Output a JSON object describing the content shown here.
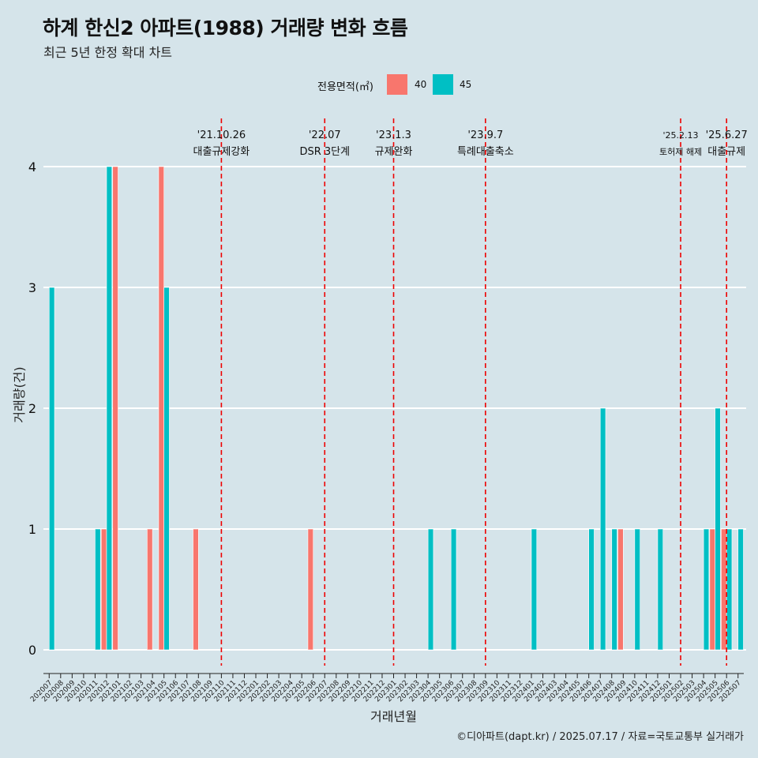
{
  "title": "하계 한신2 아파트(1988) 거래량 변화 흐름",
  "subtitle": "최근 5년 한정 확대 차트",
  "caption": "©디아파트(dapt.kr) / 2025.07.17 / 자료=국토교통부 실거래가",
  "colors": {
    "background": "#d5e4ea",
    "s40": "#f8766d",
    "s45": "#00bfc4",
    "event": "#ee0000",
    "grid": "#ffffff"
  },
  "chart_data": {
    "type": "bar",
    "xlabel": "거래년월",
    "ylabel": "거래량(건)",
    "ylim": [
      0,
      4
    ],
    "yticks": [
      0,
      1,
      2,
      3,
      4
    ],
    "legend": {
      "title": "전용면적(㎡)",
      "position": "top"
    },
    "categories": [
      "202007",
      "202008",
      "202009",
      "202010",
      "202011",
      "202012",
      "202101",
      "202102",
      "202103",
      "202104",
      "202105",
      "202106",
      "202107",
      "202108",
      "202109",
      "202110",
      "202111",
      "202112",
      "202201",
      "202202",
      "202203",
      "202204",
      "202205",
      "202206",
      "202207",
      "202208",
      "202209",
      "202210",
      "202211",
      "202212",
      "202301",
      "202302",
      "202303",
      "202304",
      "202305",
      "202306",
      "202307",
      "202308",
      "202309",
      "202310",
      "202311",
      "202312",
      "202401",
      "202402",
      "202403",
      "202404",
      "202405",
      "202406",
      "202407",
      "202408",
      "202409",
      "202410",
      "202411",
      "202412",
      "202501",
      "202502",
      "202503",
      "202504",
      "202505",
      "202506",
      "202507"
    ],
    "series": [
      {
        "name": "40",
        "values": [
          0,
          0,
          0,
          0,
          0,
          1,
          4,
          0,
          0,
          1,
          4,
          0,
          0,
          1,
          0,
          0,
          0,
          0,
          0,
          0,
          0,
          0,
          0,
          1,
          0,
          0,
          0,
          0,
          0,
          0,
          0,
          0,
          0,
          0,
          0,
          0,
          0,
          0,
          0,
          0,
          0,
          0,
          0,
          0,
          0,
          0,
          0,
          0,
          0,
          0,
          1,
          0,
          0,
          0,
          0,
          0,
          0,
          0,
          1,
          1,
          0
        ]
      },
      {
        "name": "45",
        "values": [
          3,
          0,
          0,
          0,
          1,
          4,
          0,
          0,
          0,
          0,
          3,
          0,
          0,
          0,
          0,
          0,
          0,
          0,
          0,
          0,
          0,
          0,
          0,
          0,
          0,
          0,
          0,
          0,
          0,
          0,
          0,
          0,
          0,
          1,
          0,
          1,
          0,
          0,
          0,
          0,
          0,
          0,
          1,
          0,
          0,
          0,
          0,
          1,
          2,
          1,
          0,
          1,
          0,
          1,
          0,
          0,
          0,
          1,
          2,
          1,
          1
        ]
      }
    ],
    "events": [
      {
        "date_label": "'21.10.26",
        "text": "대출규제강화",
        "x": "202110"
      },
      {
        "date_label": "'22.07",
        "text": "DSR 3단계",
        "x": "202207"
      },
      {
        "date_label": "'23.1.3",
        "text": "규제완화",
        "x": "202301"
      },
      {
        "date_label": "'23.9.7",
        "text": "특례대출축소",
        "x": "202309"
      },
      {
        "date_label": "'25.2.13",
        "text": "토허제 해제",
        "x": "202502"
      },
      {
        "date_label": "'25.6.27",
        "text": "대출규제",
        "x": "202506"
      }
    ]
  }
}
